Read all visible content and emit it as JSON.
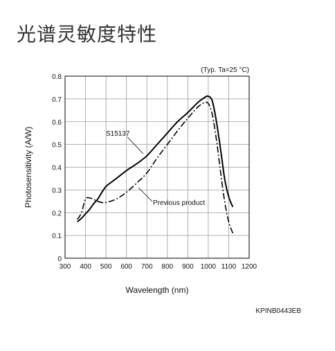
{
  "page": {
    "title": "光谱灵敏度特性",
    "footer_code": "KPINB0443EB"
  },
  "chart_data": {
    "type": "line",
    "title": "",
    "note": "(Typ. Ta=25 °C)",
    "xlabel": "Wavelength (nm)",
    "ylabel": "Photosensitivity (A/W)",
    "xlim": [
      300,
      1200
    ],
    "ylim": [
      0,
      0.8
    ],
    "xticks": [
      300,
      400,
      500,
      600,
      700,
      800,
      900,
      1000,
      1100,
      1200
    ],
    "yticks": [
      0,
      0.1,
      0.2,
      0.3,
      0.4,
      0.5,
      0.6,
      0.7,
      0.8
    ],
    "grid": true,
    "series": [
      {
        "name": "S15137",
        "style": "solid",
        "color": "#000000",
        "x": [
          360,
          380,
          400,
          420,
          440,
          460,
          480,
          500,
          520,
          550,
          600,
          650,
          700,
          750,
          800,
          850,
          900,
          950,
          980,
          1000,
          1020,
          1040,
          1060,
          1080,
          1100,
          1120
        ],
        "y": [
          0.16,
          0.175,
          0.195,
          0.215,
          0.24,
          0.26,
          0.29,
          0.315,
          0.33,
          0.35,
          0.385,
          0.415,
          0.45,
          0.5,
          0.55,
          0.6,
          0.64,
          0.685,
          0.705,
          0.712,
          0.69,
          0.6,
          0.48,
          0.35,
          0.27,
          0.225
        ]
      },
      {
        "name": "Previous product",
        "style": "dashdot",
        "color": "#000000",
        "x": [
          360,
          380,
          400,
          420,
          440,
          460,
          480,
          500,
          550,
          600,
          650,
          700,
          750,
          800,
          850,
          900,
          950,
          980,
          1000,
          1020,
          1040,
          1060,
          1080,
          1100,
          1120
        ],
        "y": [
          0.17,
          0.2,
          0.26,
          0.265,
          0.258,
          0.25,
          0.245,
          0.245,
          0.26,
          0.29,
          0.33,
          0.375,
          0.44,
          0.5,
          0.56,
          0.615,
          0.665,
          0.683,
          0.68,
          0.63,
          0.52,
          0.38,
          0.25,
          0.16,
          0.11
        ]
      }
    ],
    "annotations": [
      {
        "text": "S15137",
        "series": 0
      },
      {
        "text": "Previous product",
        "series": 1
      }
    ]
  }
}
